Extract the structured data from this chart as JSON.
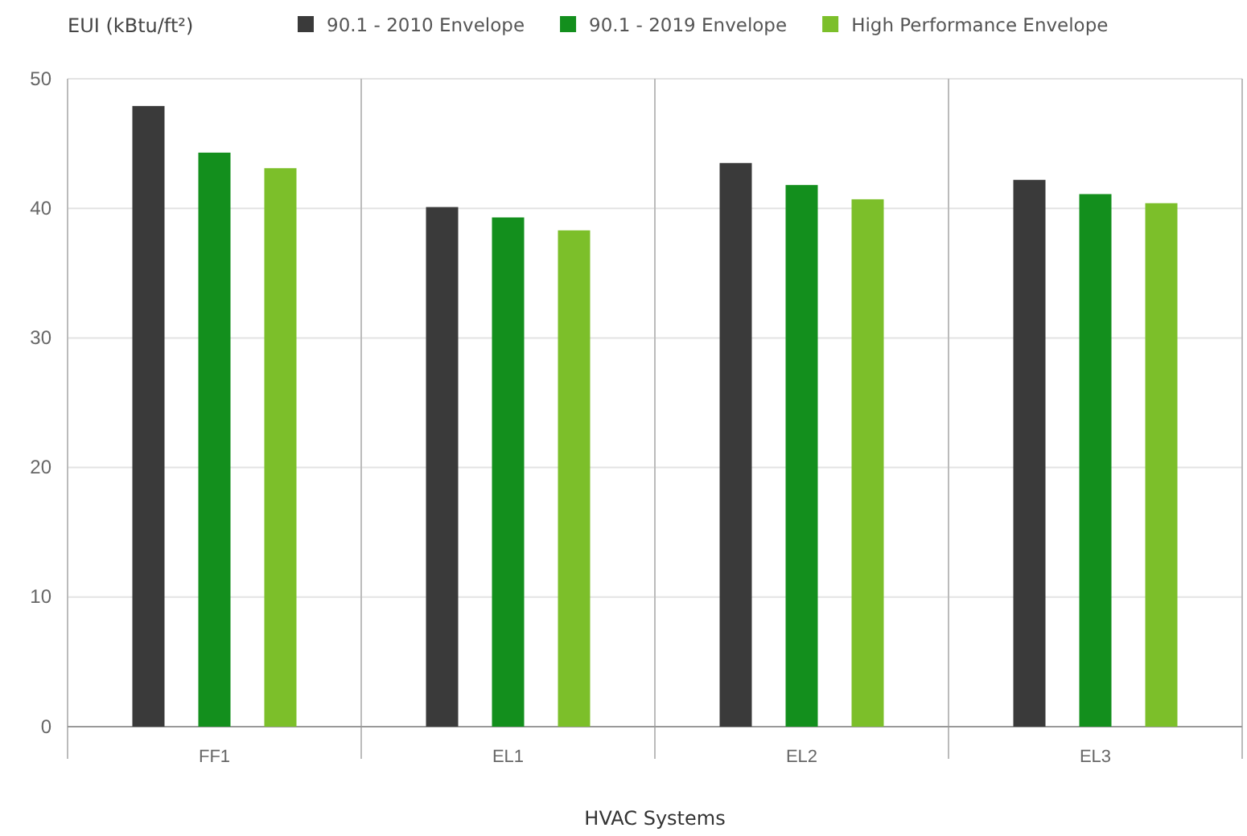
{
  "chart_data": {
    "type": "bar",
    "ylabel": "EUI (kBtu/ft²)",
    "xlabel": "HVAC Systems",
    "categories": [
      "FF1",
      "EL1",
      "EL2",
      "EL3"
    ],
    "series": [
      {
        "name": "90.1 - 2010 Envelope",
        "color": "#3a3a3a",
        "values": [
          47.9,
          40.1,
          43.5,
          42.2
        ]
      },
      {
        "name": "90.1 - 2019 Envelope",
        "color": "#138f1d",
        "values": [
          44.3,
          39.3,
          41.8,
          41.1
        ]
      },
      {
        "name": "High Performance Envelope",
        "color": "#7cbf2a",
        "values": [
          43.1,
          38.3,
          40.7,
          40.4
        ]
      }
    ],
    "ylim": [
      0,
      50
    ],
    "yticks": [
      0,
      10,
      20,
      30,
      40,
      50
    ],
    "grid": true,
    "legend": "top"
  }
}
